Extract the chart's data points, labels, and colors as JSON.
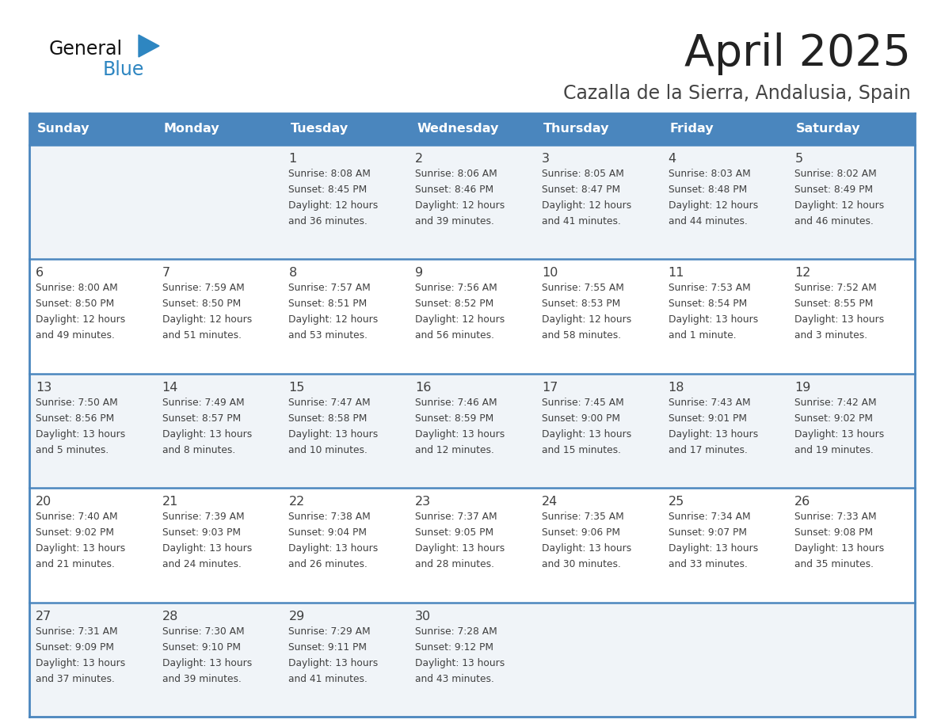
{
  "title": "April 2025",
  "subtitle": "Cazalla de la Sierra, Andalusia, Spain",
  "days_of_week": [
    "Sunday",
    "Monday",
    "Tuesday",
    "Wednesday",
    "Thursday",
    "Friday",
    "Saturday"
  ],
  "header_bg": "#4a86be",
  "header_text": "#ffffff",
  "row_bg_light": "#f0f4f8",
  "row_bg_white": "#ffffff",
  "border_color": "#4a86be",
  "text_color": "#404040",
  "title_color": "#222222",
  "subtitle_color": "#444444",
  "cell_data": [
    [
      "",
      "",
      "1\nSunrise: 8:08 AM\nSunset: 8:45 PM\nDaylight: 12 hours\nand 36 minutes.",
      "2\nSunrise: 8:06 AM\nSunset: 8:46 PM\nDaylight: 12 hours\nand 39 minutes.",
      "3\nSunrise: 8:05 AM\nSunset: 8:47 PM\nDaylight: 12 hours\nand 41 minutes.",
      "4\nSunrise: 8:03 AM\nSunset: 8:48 PM\nDaylight: 12 hours\nand 44 minutes.",
      "5\nSunrise: 8:02 AM\nSunset: 8:49 PM\nDaylight: 12 hours\nand 46 minutes."
    ],
    [
      "6\nSunrise: 8:00 AM\nSunset: 8:50 PM\nDaylight: 12 hours\nand 49 minutes.",
      "7\nSunrise: 7:59 AM\nSunset: 8:50 PM\nDaylight: 12 hours\nand 51 minutes.",
      "8\nSunrise: 7:57 AM\nSunset: 8:51 PM\nDaylight: 12 hours\nand 53 minutes.",
      "9\nSunrise: 7:56 AM\nSunset: 8:52 PM\nDaylight: 12 hours\nand 56 minutes.",
      "10\nSunrise: 7:55 AM\nSunset: 8:53 PM\nDaylight: 12 hours\nand 58 minutes.",
      "11\nSunrise: 7:53 AM\nSunset: 8:54 PM\nDaylight: 13 hours\nand 1 minute.",
      "12\nSunrise: 7:52 AM\nSunset: 8:55 PM\nDaylight: 13 hours\nand 3 minutes."
    ],
    [
      "13\nSunrise: 7:50 AM\nSunset: 8:56 PM\nDaylight: 13 hours\nand 5 minutes.",
      "14\nSunrise: 7:49 AM\nSunset: 8:57 PM\nDaylight: 13 hours\nand 8 minutes.",
      "15\nSunrise: 7:47 AM\nSunset: 8:58 PM\nDaylight: 13 hours\nand 10 minutes.",
      "16\nSunrise: 7:46 AM\nSunset: 8:59 PM\nDaylight: 13 hours\nand 12 minutes.",
      "17\nSunrise: 7:45 AM\nSunset: 9:00 PM\nDaylight: 13 hours\nand 15 minutes.",
      "18\nSunrise: 7:43 AM\nSunset: 9:01 PM\nDaylight: 13 hours\nand 17 minutes.",
      "19\nSunrise: 7:42 AM\nSunset: 9:02 PM\nDaylight: 13 hours\nand 19 minutes."
    ],
    [
      "20\nSunrise: 7:40 AM\nSunset: 9:02 PM\nDaylight: 13 hours\nand 21 minutes.",
      "21\nSunrise: 7:39 AM\nSunset: 9:03 PM\nDaylight: 13 hours\nand 24 minutes.",
      "22\nSunrise: 7:38 AM\nSunset: 9:04 PM\nDaylight: 13 hours\nand 26 minutes.",
      "23\nSunrise: 7:37 AM\nSunset: 9:05 PM\nDaylight: 13 hours\nand 28 minutes.",
      "24\nSunrise: 7:35 AM\nSunset: 9:06 PM\nDaylight: 13 hours\nand 30 minutes.",
      "25\nSunrise: 7:34 AM\nSunset: 9:07 PM\nDaylight: 13 hours\nand 33 minutes.",
      "26\nSunrise: 7:33 AM\nSunset: 9:08 PM\nDaylight: 13 hours\nand 35 minutes."
    ],
    [
      "27\nSunrise: 7:31 AM\nSunset: 9:09 PM\nDaylight: 13 hours\nand 37 minutes.",
      "28\nSunrise: 7:30 AM\nSunset: 9:10 PM\nDaylight: 13 hours\nand 39 minutes.",
      "29\nSunrise: 7:29 AM\nSunset: 9:11 PM\nDaylight: 13 hours\nand 41 minutes.",
      "30\nSunrise: 7:28 AM\nSunset: 9:12 PM\nDaylight: 13 hours\nand 43 minutes.",
      "",
      "",
      ""
    ]
  ],
  "logo_triangle_color": "#2e86c1",
  "fig_width": 11.88,
  "fig_height": 9.18
}
